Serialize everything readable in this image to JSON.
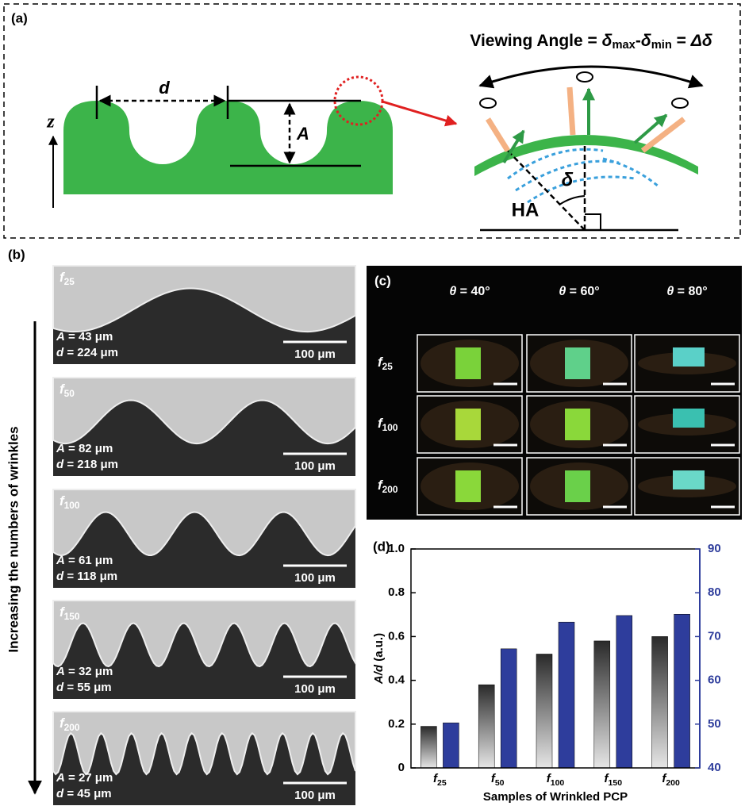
{
  "panel_a": {
    "label": "(a)",
    "title": [
      {
        "text": "Viewing Angle = ",
        "style": "normal"
      },
      {
        "text": "δ",
        "style": "italic"
      },
      {
        "text": "max",
        "style": "sub"
      },
      {
        "text": "-",
        "style": "normal"
      },
      {
        "text": "δ",
        "style": "italic"
      },
      {
        "text": "min",
        "style": "sub"
      },
      {
        "text": " = ",
        "style": "normal"
      },
      {
        "text": "Δδ",
        "style": "italic"
      }
    ],
    "d_label": "d",
    "a_label": "A",
    "z_label": "z",
    "delta_label": "δ",
    "ha_label": "HA"
  },
  "panel_b": {
    "label": "(b)",
    "arrow_label": "Increasing the numbers of wrinkles",
    "images": [
      {
        "sample": [
          {
            "text": "f",
            "style": "italic"
          },
          {
            "text": "25",
            "style": "sub"
          }
        ],
        "a": [
          {
            "text": "A",
            "style": "italic"
          },
          {
            "text": " = 43 μm",
            "style": "normal"
          }
        ],
        "d": [
          {
            "text": "d",
            "style": "italic"
          },
          {
            "text": " = 224 μm",
            "style": "normal"
          }
        ],
        "scale": "100 μm"
      },
      {
        "sample": [
          {
            "text": "f",
            "style": "italic"
          },
          {
            "text": "50",
            "style": "sub"
          }
        ],
        "a": [
          {
            "text": "A",
            "style": "italic"
          },
          {
            "text": " = 82 μm",
            "style": "normal"
          }
        ],
        "d": [
          {
            "text": "d",
            "style": "italic"
          },
          {
            "text": " = 218 μm",
            "style": "normal"
          }
        ],
        "scale": "100 μm"
      },
      {
        "sample": [
          {
            "text": "f",
            "style": "italic"
          },
          {
            "text": "100",
            "style": "sub"
          }
        ],
        "a": [
          {
            "text": "A",
            "style": "italic"
          },
          {
            "text": " = 61 μm",
            "style": "normal"
          }
        ],
        "d": [
          {
            "text": "d",
            "style": "italic"
          },
          {
            "text": " = 118 μm",
            "style": "normal"
          }
        ],
        "scale": "100 μm"
      },
      {
        "sample": [
          {
            "text": "f",
            "style": "italic"
          },
          {
            "text": "150",
            "style": "sub"
          }
        ],
        "a": [
          {
            "text": "A",
            "style": "italic"
          },
          {
            "text": " = 32 μm",
            "style": "normal"
          }
        ],
        "d": [
          {
            "text": "d",
            "style": "italic"
          },
          {
            "text": " = 55 μm",
            "style": "normal"
          }
        ],
        "scale": "100 μm"
      },
      {
        "sample": [
          {
            "text": "f",
            "style": "italic"
          },
          {
            "text": "200",
            "style": "sub"
          }
        ],
        "a": [
          {
            "text": "A",
            "style": "italic"
          },
          {
            "text": " = 27 μm",
            "style": "normal"
          }
        ],
        "d": [
          {
            "text": "d",
            "style": "italic"
          },
          {
            "text": " = 45 μm",
            "style": "normal"
          }
        ],
        "scale": "100 μm"
      }
    ]
  },
  "panel_c": {
    "label": "(c)",
    "columns": [
      [
        {
          "text": "θ",
          "style": "italic"
        },
        {
          "text": " = 40°",
          "style": "normal"
        }
      ],
      [
        {
          "text": "θ",
          "style": "italic"
        },
        {
          "text": " = 60°",
          "style": "normal"
        }
      ],
      [
        {
          "text": "θ",
          "style": "italic"
        },
        {
          "text": " = 80°",
          "style": "normal"
        }
      ]
    ],
    "rows": [
      [
        {
          "text": "f",
          "style": "italic"
        },
        {
          "text": "25",
          "style": "sub"
        }
      ],
      [
        {
          "text": "f",
          "style": "italic"
        },
        {
          "text": "100",
          "style": "sub"
        }
      ],
      [
        {
          "text": "f",
          "style": "italic"
        },
        {
          "text": "200",
          "style": "sub"
        }
      ]
    ]
  },
  "chart_data": {
    "type": "bar",
    "panel_label": "(d)",
    "categories": [
      [
        {
          "text": "f",
          "style": "italic"
        },
        {
          "text": "25",
          "style": "sub"
        }
      ],
      [
        {
          "text": "f",
          "style": "italic"
        },
        {
          "text": "50",
          "style": "sub"
        }
      ],
      [
        {
          "text": "f",
          "style": "italic"
        },
        {
          "text": "100",
          "style": "sub"
        }
      ],
      [
        {
          "text": "f",
          "style": "italic"
        },
        {
          "text": "150",
          "style": "sub"
        }
      ],
      [
        {
          "text": "f",
          "style": "italic"
        },
        {
          "text": "200",
          "style": "sub"
        }
      ]
    ],
    "series": [
      {
        "color": "#2a2a2a",
        "values": [
          0.19,
          0.38,
          0.52,
          0.58,
          0.6
        ]
      },
      {
        "color": "#2e3d9c",
        "axis": "y2",
        "values": [
          50.3,
          67.2,
          73.3,
          74.8,
          75.1
        ]
      }
    ],
    "ylim": [
      0,
      1
    ],
    "yticks": [
      0,
      0.2,
      0.4,
      0.6,
      0.8,
      {
        "value": 1,
        "label": "1.0"
      }
    ],
    "y2lim": [
      40,
      90
    ],
    "y2ticks": [
      40,
      50,
      60,
      70,
      80,
      90
    ],
    "y2_color": "#2e3d9c",
    "xlabel": "Samples of Wrinkled PCP",
    "ylabel": [
      {
        "text": "A/d",
        "style": "italic"
      },
      {
        "text": " (a.u.)",
        "style": "normal"
      }
    ]
  }
}
